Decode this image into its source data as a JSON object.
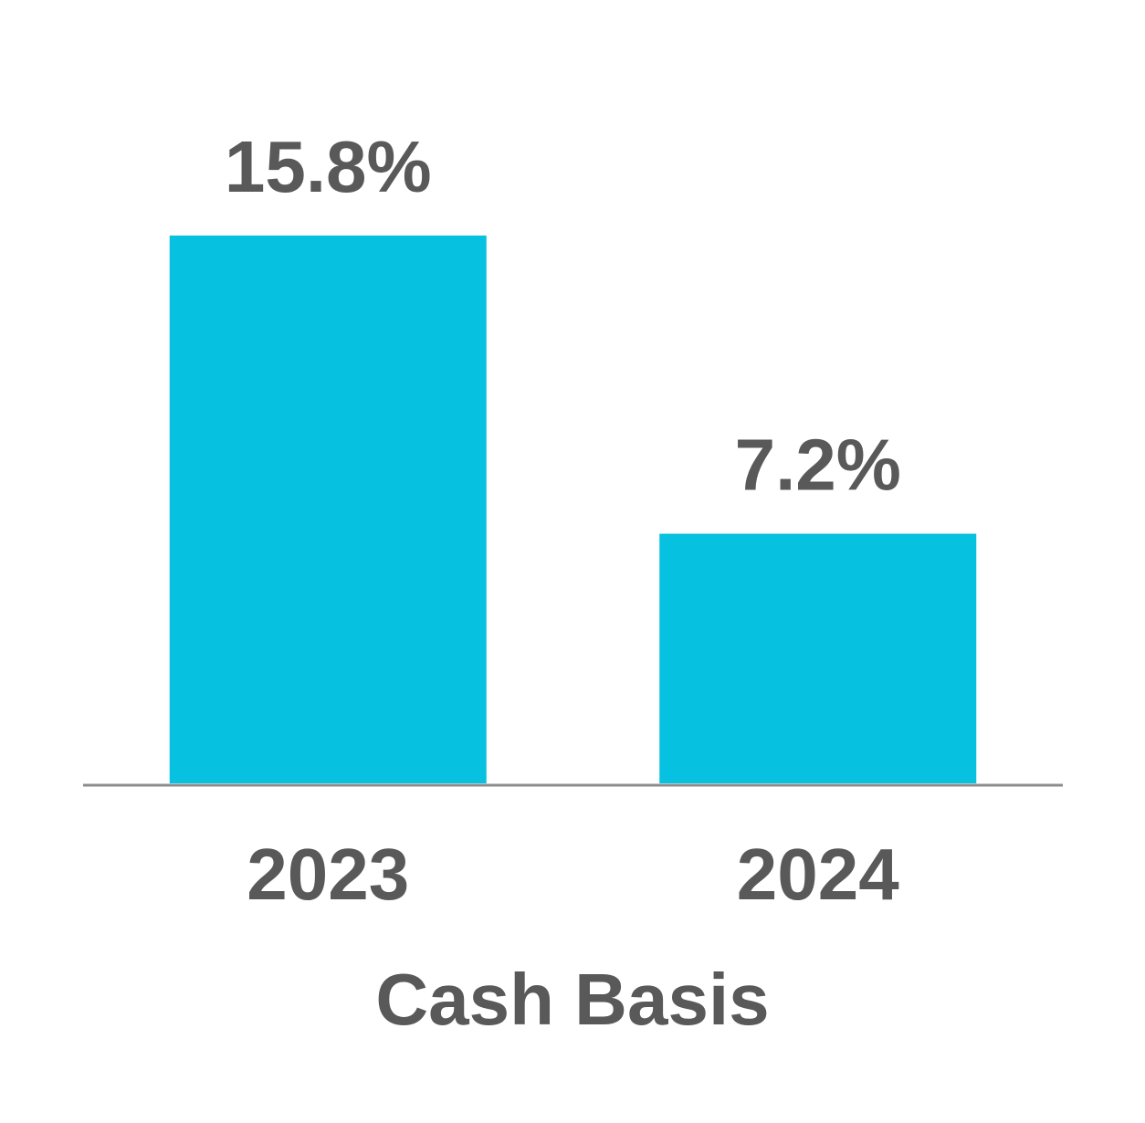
{
  "chart_data": {
    "type": "bar",
    "xlabel": "Cash Basis",
    "categories": [
      "2023",
      "2024"
    ],
    "values": [
      15.8,
      7.2
    ],
    "value_labels": [
      "15.8%",
      "7.2%"
    ],
    "color": "#06c1df"
  }
}
